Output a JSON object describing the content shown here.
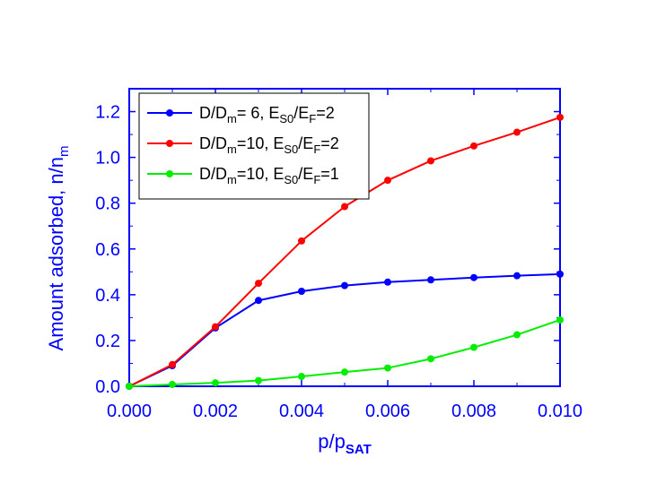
{
  "chart_data": {
    "type": "line",
    "title": "",
    "xlabel": {
      "main": "p/p",
      "sub": "SAT"
    },
    "ylabel": {
      "main": "Amount adsorbed, n/n",
      "sub": "m"
    },
    "xlim": [
      0,
      0.01
    ],
    "ylim": [
      0,
      1.3
    ],
    "xticks": [
      0,
      0.002,
      0.004,
      0.006,
      0.008,
      0.01
    ],
    "xtick_labels": [
      "0.000",
      "0.002",
      "0.004",
      "0.006",
      "0.008",
      "0.010"
    ],
    "yticks": [
      0,
      0.2,
      0.4,
      0.6,
      0.8,
      1.0,
      1.2
    ],
    "ytick_labels": [
      "0.0",
      "0.2",
      "0.4",
      "0.6",
      "0.8",
      "1.0",
      "1.2"
    ],
    "grid": false,
    "legend_position": "top-left",
    "x": [
      0,
      0.001,
      0.002,
      0.003,
      0.004,
      0.005,
      0.006,
      0.007,
      0.008,
      0.009,
      0.01
    ],
    "series": [
      {
        "color": "#0000ff",
        "legend": {
          "p1": "D/D",
          "s1": "m",
          "p2": "= 6, E",
          "s2": "S0",
          "p3": "/E",
          "s3": "F",
          "p4": "=2"
        },
        "values": [
          0.0,
          0.09,
          0.255,
          0.375,
          0.415,
          0.44,
          0.455,
          0.465,
          0.475,
          0.483,
          0.49
        ]
      },
      {
        "color": "#ff0000",
        "legend": {
          "p1": "D/D",
          "s1": "m",
          "p2": "=10, E",
          "s2": "S0",
          "p3": "/E",
          "s3": "F",
          "p4": "=2"
        },
        "values": [
          0.0,
          0.095,
          0.26,
          0.45,
          0.635,
          0.785,
          0.9,
          0.985,
          1.05,
          1.11,
          1.175
        ]
      },
      {
        "color": "#00ee00",
        "legend": {
          "p1": "D/D",
          "s1": "m",
          "p2": "=10, E",
          "s2": "S0",
          "p3": "/E",
          "s3": "F",
          "p4": "=1"
        },
        "values": [
          0.0,
          0.008,
          0.015,
          0.025,
          0.043,
          0.062,
          0.08,
          0.12,
          0.17,
          0.225,
          0.29
        ]
      }
    ]
  }
}
